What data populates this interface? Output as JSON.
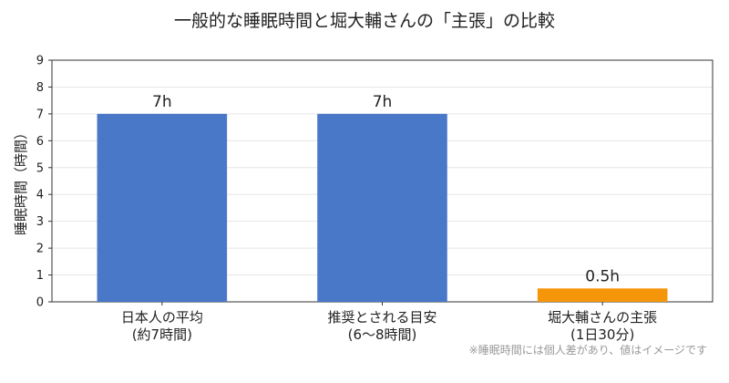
{
  "chart_data": {
    "type": "bar",
    "title": "一般的な睡眠時間と堀大輔さんの「主張」の比較",
    "xlabel": "",
    "ylabel": "睡眠時間（時間）",
    "ylim": [
      0,
      9
    ],
    "yticks": [
      "0",
      "1",
      "2",
      "3",
      "4",
      "5",
      "6",
      "7",
      "8",
      "9"
    ],
    "grid": true,
    "categories": [
      [
        "日本人の平均",
        "(約7時間)"
      ],
      [
        "推奨とされる目安",
        "(6〜8時間)"
      ],
      [
        "堀大輔さんの主張",
        "(1日30分)"
      ]
    ],
    "values": [
      7,
      7,
      0.5
    ],
    "value_labels": [
      "7h",
      "7h",
      "0.5h"
    ],
    "colors": [
      "#4a78c8",
      "#4a78c8",
      "#f5960a"
    ],
    "note": "※睡眠時間には個人差があり、値はイメージです"
  }
}
